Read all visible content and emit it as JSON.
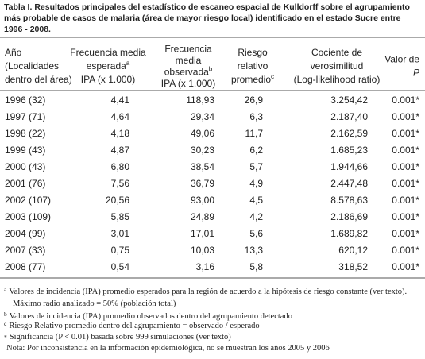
{
  "title": [
    "Tabla I. Resultados principales del estadístico de escaneo espacial de Kulldorff sobre el agrupamiento",
    "más probable de casos de malaria (área de mayor riesgo local) identificado en el estado Sucre entre",
    "1996 - 2008."
  ],
  "table": {
    "header": [
      [
        "Año",
        "(Localidades",
        "dentro del área)"
      ],
      [
        "Frecuencia media",
        {
          "text": "esperada",
          "sup": "a"
        },
        "IPA (x 1.000)"
      ],
      [
        "Frecuencia",
        "media",
        {
          "text": "observada",
          "sup": "b"
        },
        "IPA (x 1.000)"
      ],
      [
        "Riesgo",
        "relativo",
        {
          "text": "promedio",
          "sup": "c"
        }
      ],
      [
        "Cociente de",
        "verosimilitud",
        "(Log-likelihood ratio)"
      ],
      [
        "Valor de",
        "P"
      ]
    ],
    "rows": [
      [
        "1996 (32)",
        "4,41",
        "118,93",
        "26,9",
        "3.254,42",
        "0.001*"
      ],
      [
        "1997 (71)",
        "4,64",
        "29,34",
        "6,3",
        "2.187,40",
        "0.001*"
      ],
      [
        "1998 (22)",
        "4,18",
        "49,06",
        "11,7",
        "2.162,59",
        "0.001*"
      ],
      [
        "1999 (43)",
        "4,87",
        "30,23",
        "6,2",
        "1.685,23",
        "0.001*"
      ],
      [
        "2000 (43)",
        "6,80",
        "38,54",
        "5,7",
        "1.944,66",
        "0.001*"
      ],
      [
        "2001 (76)",
        "7,56",
        "36,79",
        "4,9",
        "2.447,48",
        "0.001*"
      ],
      [
        "2002 (107)",
        "20,56",
        "93,00",
        "4,5",
        "8.578,63",
        "0.001*"
      ],
      [
        "2003 (109)",
        "5,85",
        "24,89",
        "4,2",
        "2.186,69",
        "0.001*"
      ],
      [
        "2004 (99)",
        "3,01",
        "17,01",
        "5,6",
        "1.689,82",
        "0.001*"
      ],
      [
        "2007 (33)",
        "0,75",
        "10,03",
        "13,3",
        "620,12",
        "0.001*"
      ],
      [
        "2008 (77)",
        "0,54",
        "3,16",
        "5,8",
        "318,52",
        "0.001*"
      ]
    ]
  },
  "footnotes": [
    {
      "mark": "a",
      "text": "Valores de incidencia (IPA) promedio esperados para la región de acuerdo a la hipótesis de riesgo constante (ver texto)."
    },
    {
      "text": "Máximo radio analizado = 50% (población total)"
    },
    {
      "mark": "b",
      "text": "Valores de incidencia (IPA) promedio observados dentro del agrupamiento detectado"
    },
    {
      "mark": "c",
      "text": "Riesgo Relativo promedio dentro del agrupamiento = observado / esperado"
    },
    {
      "mark": "*",
      "text": "Significancia (P < 0.01) basada sobre 999 simulaciones (ver texto)"
    },
    {
      "text": "Nota: Por inconsistencia en la información epidemiológica, no se muestran los años 2005 y 2006"
    }
  ]
}
